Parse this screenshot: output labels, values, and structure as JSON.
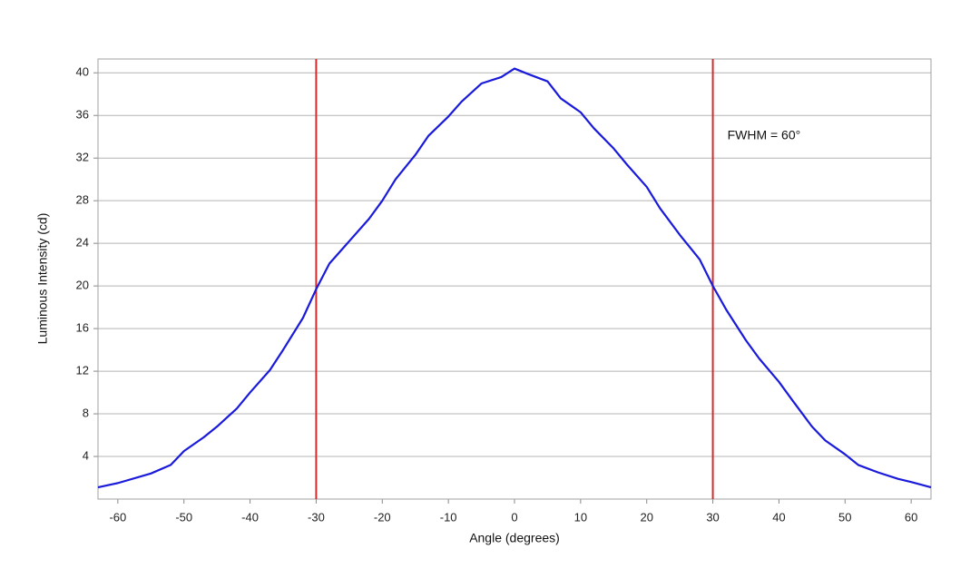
{
  "chart_data": {
    "type": "line",
    "x_label": "Angle (degrees)",
    "y_label": "Luminous Intensity (cd)",
    "annotation": "FWHM = 60°",
    "xlim": [
      -63,
      63
    ],
    "ylim": [
      0,
      41.3
    ],
    "xticks": [
      -60,
      -50,
      -40,
      -30,
      -20,
      -10,
      0,
      10,
      20,
      30,
      40,
      50,
      60
    ],
    "yticks": [
      4,
      8,
      12,
      16,
      20,
      24,
      28,
      32,
      36,
      40
    ],
    "grid": true,
    "vlines": {
      "values": [
        -30,
        30
      ],
      "color": "#d42a2a"
    },
    "series": [
      {
        "color": "#1a1adb",
        "x": [
          -63,
          -60,
          -55,
          -52,
          -50,
          -47,
          -45,
          -42,
          -40,
          -37,
          -35,
          -32,
          -30,
          -28,
          -25,
          -22,
          -20,
          -18,
          -15,
          -13,
          -10,
          -8,
          -5,
          -2,
          0,
          2,
          5,
          7,
          10,
          12,
          15,
          17,
          20,
          22,
          25,
          28,
          30,
          32,
          35,
          37,
          40,
          42,
          45,
          47,
          50,
          52,
          55,
          58,
          60,
          63
        ],
        "values": [
          1.1,
          1.5,
          2.4,
          3.2,
          4.5,
          5.8,
          6.8,
          8.5,
          10.0,
          12.1,
          14.0,
          17.0,
          19.7,
          22.1,
          24.2,
          26.3,
          28.0,
          30.0,
          32.3,
          34.1,
          35.9,
          37.3,
          39.0,
          39.6,
          40.4,
          39.9,
          39.2,
          37.6,
          36.3,
          34.8,
          32.9,
          31.4,
          29.3,
          27.3,
          24.8,
          22.5,
          20.0,
          17.8,
          14.9,
          13.2,
          11.0,
          9.3,
          6.8,
          5.5,
          4.2,
          3.2,
          2.5,
          1.9,
          1.6,
          1.1
        ]
      }
    ]
  }
}
